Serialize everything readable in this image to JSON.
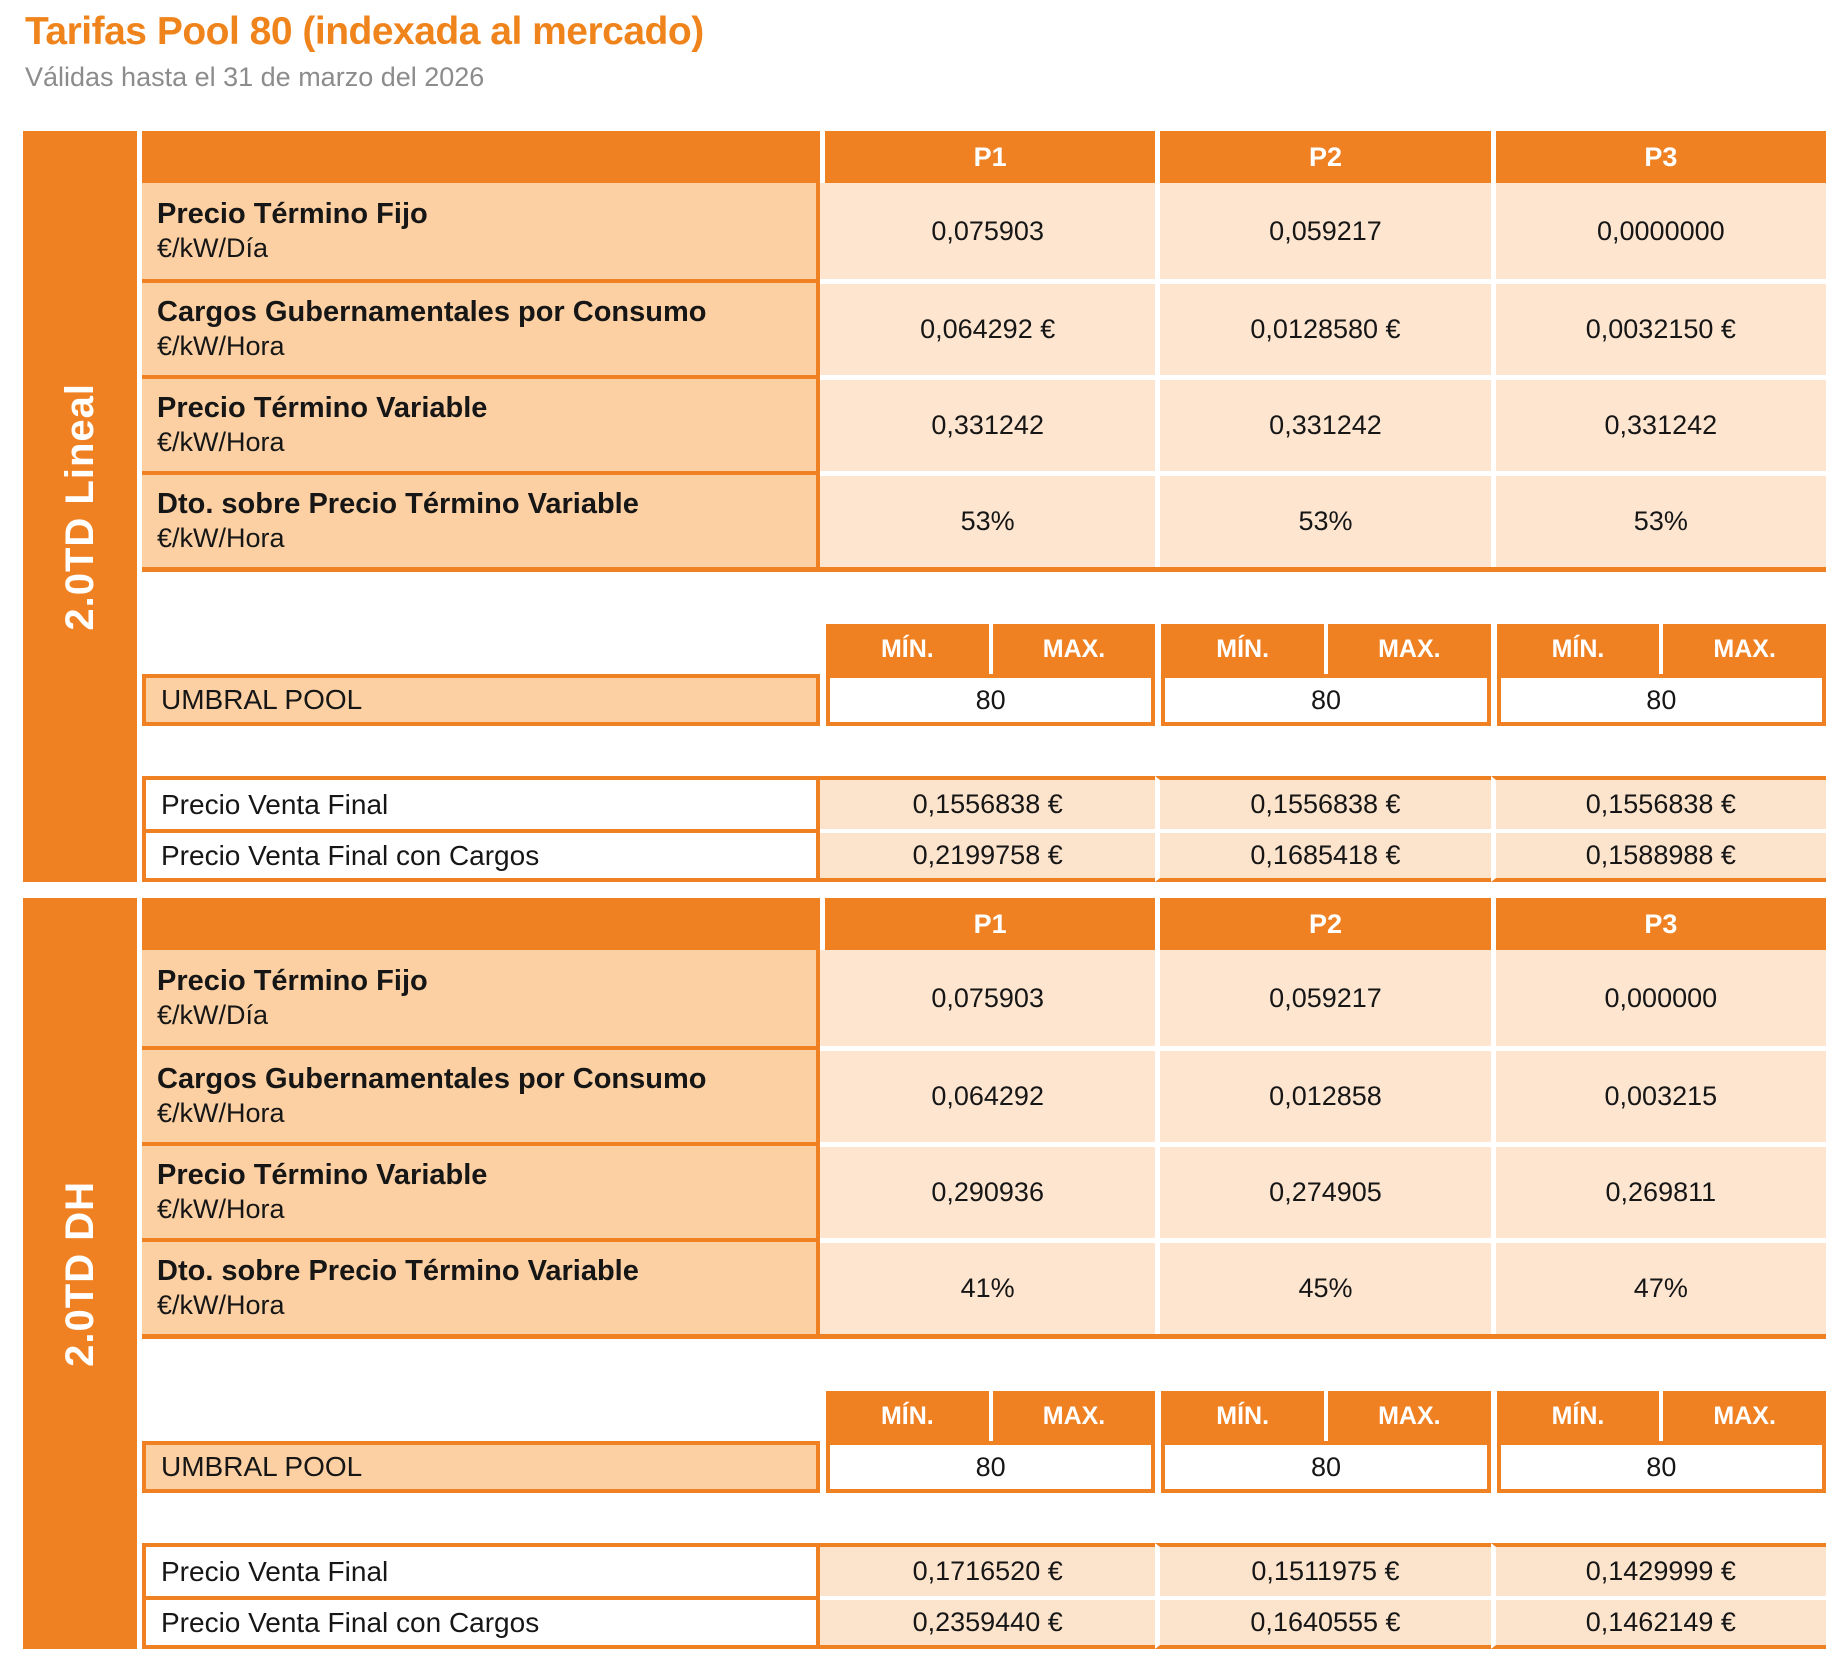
{
  "page": {
    "title": "Tarifas Pool 80 (indexada al mercado)",
    "subtitle": "Válidas hasta el 31 de marzo del 2026"
  },
  "colors": {
    "orange": "#EF8123",
    "label_peach": "#FCD0A2",
    "value_peach": "#FDE5D0",
    "title_orange": "#F0841C",
    "subtitle_gray": "#8C8C8C"
  },
  "headers": {
    "periods": [
      "P1",
      "P2",
      "P3"
    ],
    "min": "MÍN.",
    "max": "MAX.",
    "umbral": "UMBRAL POOL",
    "pvf": "Precio Venta Final",
    "pvfc": "Precio Venta Final con Cargos"
  },
  "sections": [
    {
      "name": "2.0TD Lineal",
      "rows": [
        {
          "label": "Precio Término Fijo",
          "unit": "€/kW/Día",
          "values": [
            "0,075903",
            "0,059217",
            "0,0000000"
          ]
        },
        {
          "label": "Cargos Gubernamentales por Consumo",
          "unit": "€/kW/Hora",
          "values": [
            "0,064292 €",
            "0,0128580 €",
            "0,0032150 €"
          ]
        },
        {
          "label": "Precio Término Variable",
          "unit": "€/kW/Hora",
          "values": [
            "0,331242",
            "0,331242",
            "0,331242"
          ]
        },
        {
          "label": "Dto. sobre Precio Término Variable",
          "unit": "€/kW/Hora",
          "values": [
            "53%",
            "53%",
            "53%"
          ]
        }
      ],
      "umbral_values": [
        "80",
        "80",
        "80"
      ],
      "pvf_values": [
        "0,1556838 €",
        "0,1556838 €",
        "0,1556838 €"
      ],
      "pvfc_values": [
        "0,2199758 €",
        "0,1685418 €",
        "0,1588988 €"
      ]
    },
    {
      "name": "2.0TD DH",
      "rows": [
        {
          "label": "Precio Término Fijo",
          "unit": "€/kW/Día",
          "values": [
            "0,075903",
            "0,059217",
            "0,000000"
          ]
        },
        {
          "label": "Cargos Gubernamentales por Consumo",
          "unit": "€/kW/Hora",
          "values": [
            "0,064292",
            "0,012858",
            "0,003215"
          ]
        },
        {
          "label": "Precio Término Variable",
          "unit": "€/kW/Hora",
          "values": [
            "0,290936",
            "0,274905",
            "0,269811"
          ]
        },
        {
          "label": "Dto. sobre Precio Término Variable",
          "unit": "€/kW/Hora",
          "values": [
            "41%",
            "45%",
            "47%"
          ]
        }
      ],
      "umbral_values": [
        "80",
        "80",
        "80"
      ],
      "pvf_values": [
        "0,1716520 €",
        "0,1511975 €",
        "0,1429999 €"
      ],
      "pvfc_values": [
        "0,2359440 €",
        "0,1640555 €",
        "0,1462149 €"
      ]
    }
  ]
}
